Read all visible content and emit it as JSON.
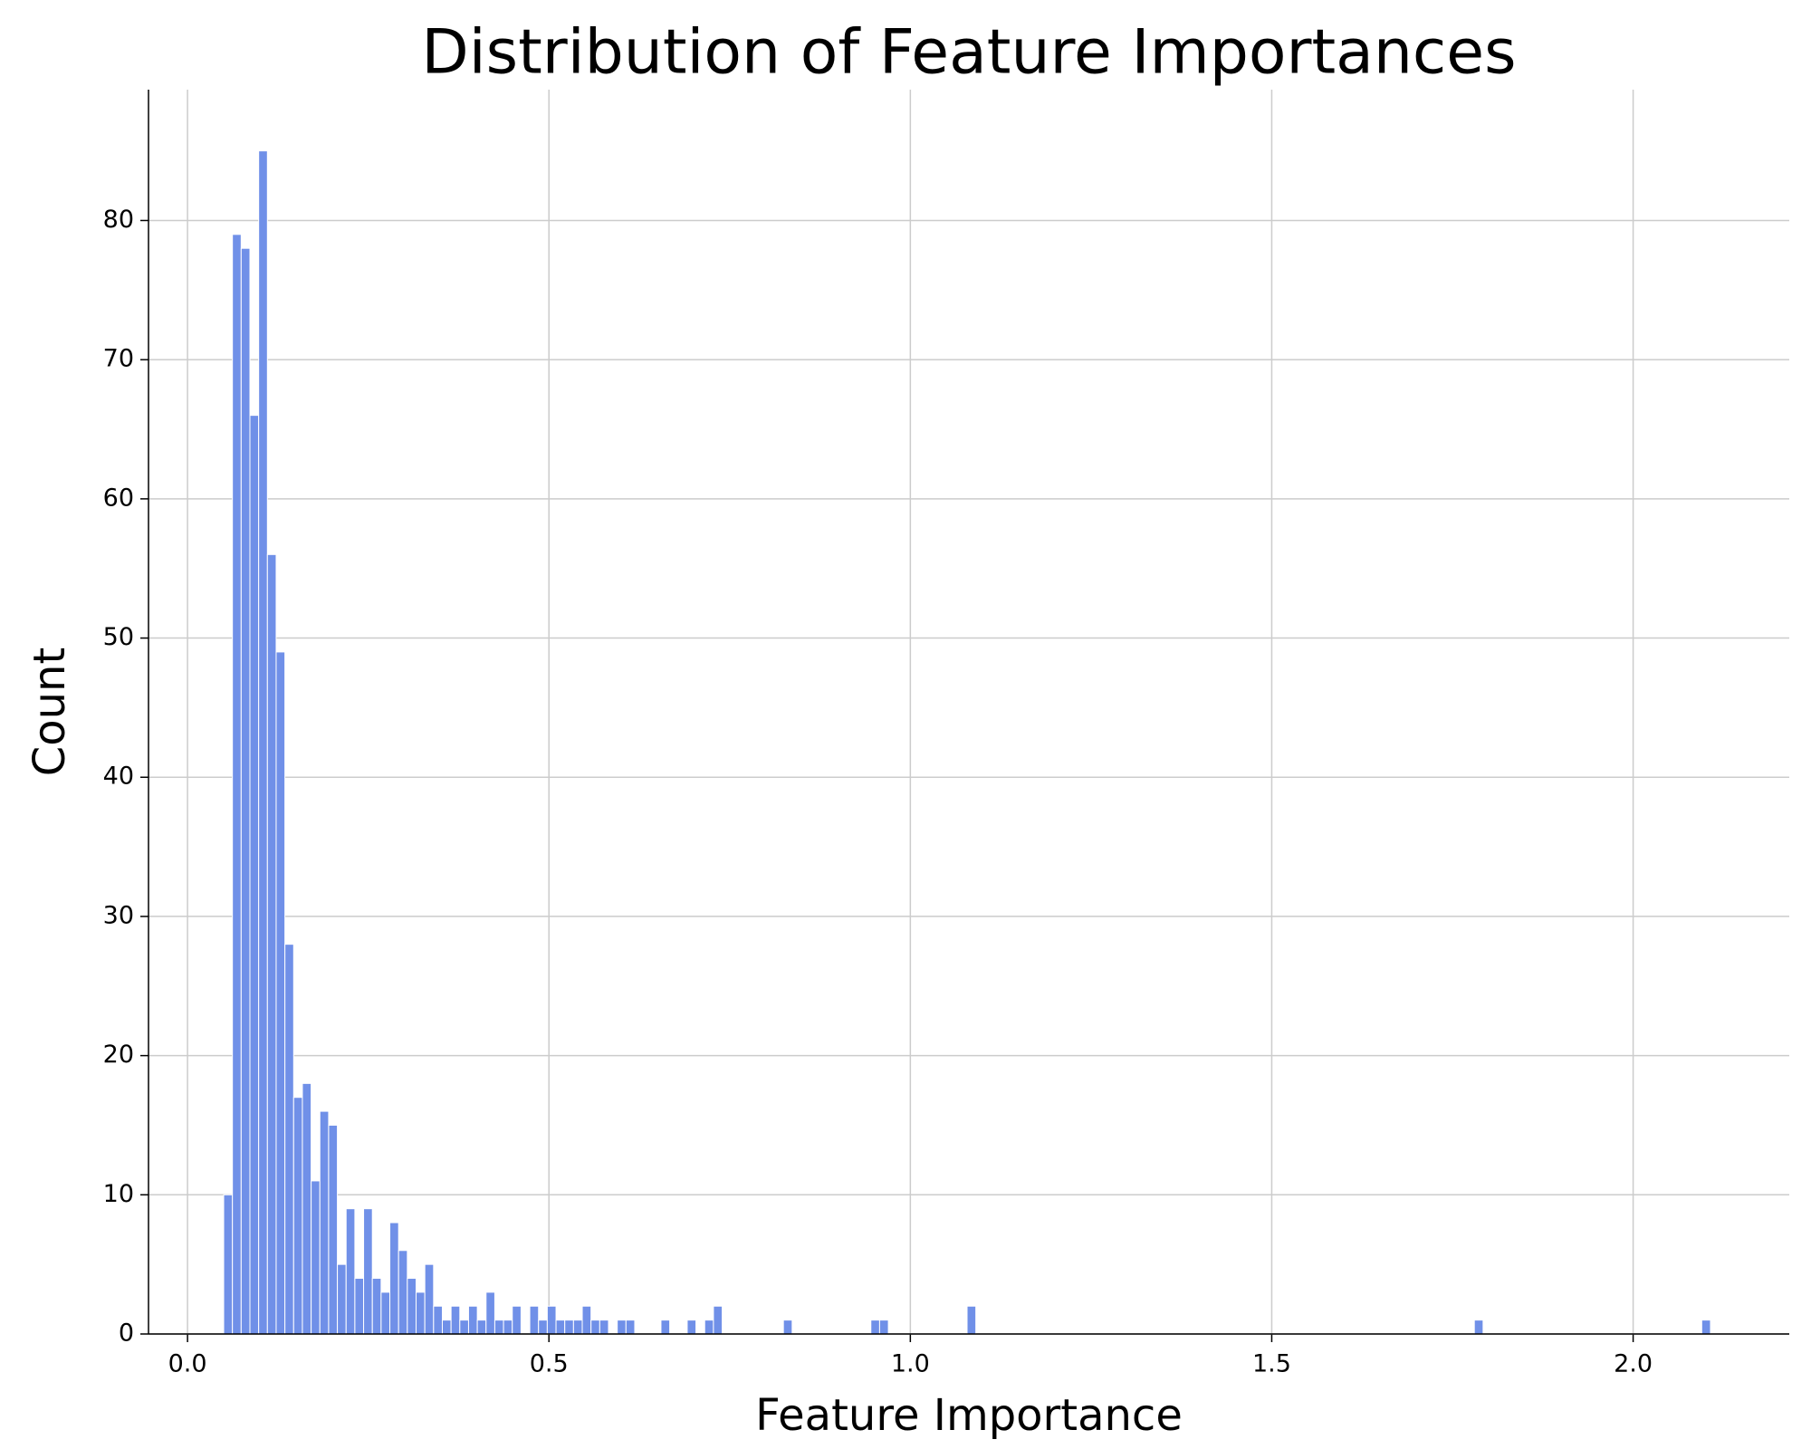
{
  "chart_data": {
    "type": "histogram",
    "title": "Distribution of Feature Importances",
    "x_label": "Feature Importance",
    "y_label": "Count",
    "bins": [
      0.05,
      0.0621,
      0.0742,
      0.0863,
      0.0984,
      0.1105,
      0.1226,
      0.1347,
      0.1468,
      0.1589,
      0.171,
      0.1831,
      0.1952,
      0.2073,
      0.2194,
      0.2315,
      0.2436,
      0.2557,
      0.2678,
      0.2799,
      0.292,
      0.3041,
      0.3162,
      0.3283,
      0.3404,
      0.3525,
      0.3646,
      0.3767,
      0.3888,
      0.4009,
      0.413,
      0.4251,
      0.4372,
      0.4493,
      0.4614,
      0.4735,
      0.4856,
      0.4977,
      0.5098,
      0.5219,
      0.534,
      0.5461,
      0.5582,
      0.5703,
      0.5824,
      0.5945,
      0.6066,
      0.6187,
      0.6308,
      0.6429,
      0.655,
      0.6671,
      0.6792,
      0.6913,
      0.7034,
      0.7155,
      0.7276,
      0.7397,
      0.7518,
      0.7639,
      0.776,
      0.7881,
      0.8002,
      0.8123,
      0.8244,
      0.8365,
      0.8486,
      0.8607,
      0.8728,
      0.8849,
      0.897,
      0.9091,
      0.9212,
      0.9333,
      0.9454,
      0.9575,
      0.9696,
      0.9817,
      0.9938,
      1.0059,
      1.018,
      1.0301,
      1.0422,
      1.0543,
      1.0664,
      1.0785,
      1.0906,
      1.1027,
      1.1148,
      1.1269,
      1.139,
      1.1511,
      1.1632,
      1.1753,
      1.1874,
      1.1995,
      1.2116,
      1.2237,
      1.2358,
      1.2479,
      1.26,
      1.2721,
      1.2842,
      1.2963,
      1.3084,
      1.3205,
      1.3326,
      1.3447,
      1.3568,
      1.3689,
      1.381,
      1.3931,
      1.4052,
      1.4173,
      1.4294,
      1.4415,
      1.4536,
      1.4657,
      1.4778,
      1.4899,
      1.502,
      1.5141,
      1.5262,
      1.5383,
      1.5504,
      1.5625,
      1.5746,
      1.5867,
      1.5988,
      1.6109,
      1.623,
      1.6351,
      1.6472,
      1.6593,
      1.6714,
      1.6835,
      1.6956,
      1.7077,
      1.7198,
      1.7319,
      1.744,
      1.7561,
      1.7682,
      1.7803,
      1.7924,
      1.8045,
      1.8166,
      1.8287,
      1.8408,
      1.8529,
      1.865,
      1.8771,
      1.8892,
      1.9013,
      1.9134,
      1.9255,
      1.9376,
      1.9497,
      1.9618,
      1.9739,
      1.986,
      1.9981,
      2.0102,
      2.0223,
      2.0344,
      2.0465,
      2.0586,
      2.0707,
      2.0828,
      2.0949,
      2.107
    ],
    "values": [
      10,
      79,
      78,
      66,
      85,
      56,
      49,
      28,
      17,
      18,
      11,
      16,
      15,
      5,
      9,
      4,
      9,
      4,
      3,
      8,
      6,
      4,
      3,
      5,
      2,
      1,
      2,
      1,
      2,
      1,
      3,
      1,
      1,
      2,
      0,
      2,
      1,
      2,
      1,
      1,
      1,
      2,
      1,
      1,
      0,
      1,
      1,
      0,
      0,
      0,
      1,
      0,
      0,
      1,
      0,
      1,
      2,
      0,
      0,
      0,
      0,
      0,
      0,
      0,
      1,
      0,
      0,
      0,
      0,
      0,
      0,
      0,
      0,
      0,
      1,
      1,
      0,
      0,
      0,
      0,
      0,
      0,
      0,
      0,
      0,
      2,
      0,
      0,
      0,
      0,
      0,
      0,
      0,
      0,
      0,
      0,
      0,
      0,
      0,
      0,
      0,
      0,
      0,
      0,
      0,
      0,
      0,
      0,
      0,
      0,
      0,
      0,
      0,
      0,
      0,
      0,
      0,
      0,
      0,
      0,
      0,
      0,
      0,
      0,
      0,
      0,
      0,
      0,
      0,
      0,
      0,
      0,
      0,
      0,
      0,
      0,
      0,
      0,
      0,
      0,
      0,
      0,
      0,
      1,
      0,
      0,
      0,
      0,
      0,
      0,
      0,
      0,
      0,
      0,
      0,
      0,
      0,
      0,
      0,
      0,
      0,
      0,
      0,
      0,
      0,
      0,
      0,
      0,
      0,
      1
    ],
    "color": "#7090e8",
    "xlim": [
      -0.054,
      2.216
    ],
    "ylim": [
      0,
      89.4
    ],
    "xticks": [
      {
        "value": 0,
        "label": "0.0"
      },
      0.5,
      {
        "value": 1,
        "label": "1.0"
      },
      1.5,
      {
        "value": 2,
        "label": "2.0"
      }
    ],
    "yticks": [
      0,
      10,
      20,
      30,
      40,
      50,
      60,
      70,
      80
    ],
    "grid": true
  }
}
